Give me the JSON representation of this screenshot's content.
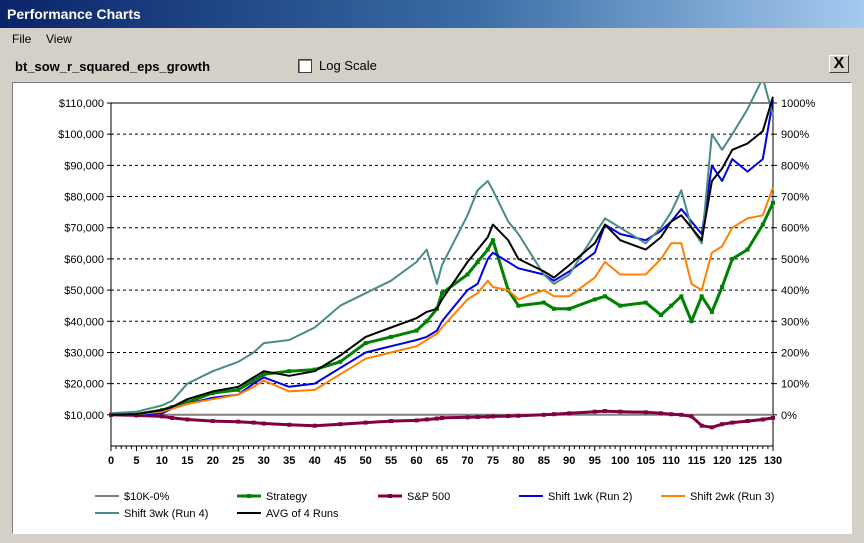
{
  "window": {
    "title": "Performance Charts"
  },
  "menu": {
    "items": [
      "File",
      "View"
    ]
  },
  "toolbar": {
    "chart_name": "bt_sow_r_squared_eps_growth",
    "log_scale_label": "Log Scale",
    "log_scale_checked": false,
    "close_label": "X"
  },
  "chart_data": {
    "type": "line",
    "title": "",
    "xlabel": "",
    "ylabel": "",
    "xlim": [
      0,
      130
    ],
    "ylim": [
      0,
      110000
    ],
    "y2lim": [
      -100,
      1000
    ],
    "y_ticks": [
      "$10,000",
      "$20,000",
      "$30,000",
      "$40,000",
      "$50,000",
      "$60,000",
      "$70,000",
      "$80,000",
      "$90,000",
      "$100,000",
      "$110,000"
    ],
    "y2_ticks": [
      "0%",
      "100%",
      "200%",
      "300%",
      "400%",
      "500%",
      "600%",
      "700%",
      "800%",
      "900%",
      "1000%"
    ],
    "x_ticks": [
      "0",
      "5",
      "10",
      "15",
      "20",
      "25",
      "30",
      "35",
      "40",
      "45",
      "50",
      "55",
      "60",
      "65",
      "70",
      "75",
      "80",
      "85",
      "90",
      "95",
      "100",
      "105",
      "110",
      "115",
      "120",
      "125",
      "130"
    ],
    "grid": "horizontal-dashed",
    "legend_position": "bottom",
    "x": [
      0,
      5,
      10,
      12,
      15,
      20,
      25,
      28,
      30,
      35,
      40,
      45,
      50,
      55,
      60,
      62,
      64,
      65,
      70,
      72,
      74,
      75,
      78,
      80,
      85,
      87,
      90,
      95,
      97,
      100,
      105,
      108,
      110,
      112,
      114,
      116,
      118,
      120,
      122,
      125,
      128,
      130
    ],
    "series": [
      {
        "name": "$10K-0%",
        "color": "#808080",
        "marker": "none",
        "values": [
          10000,
          10000,
          10000,
          10000,
          10000,
          10000,
          10000,
          10000,
          10000,
          10000,
          10000,
          10000,
          10000,
          10000,
          10000,
          10000,
          10000,
          10000,
          10000,
          10000,
          10000,
          10000,
          10000,
          10000,
          10000,
          10000,
          10000,
          10000,
          10000,
          10000,
          10000,
          10000,
          10000,
          10000,
          10000,
          10000,
          10000,
          10000,
          10000,
          10000,
          10000,
          10000
        ]
      },
      {
        "name": "Strategy",
        "color": "#008000",
        "marker": "square",
        "values": [
          10000,
          10200,
          11500,
          12500,
          14000,
          17000,
          18000,
          21000,
          23000,
          24000,
          24500,
          27000,
          33000,
          35000,
          37000,
          40000,
          44000,
          49000,
          55000,
          59000,
          63000,
          66000,
          50000,
          45000,
          46000,
          44000,
          44000,
          47000,
          48000,
          45000,
          46000,
          42000,
          45000,
          48000,
          40000,
          48000,
          43000,
          51000,
          60000,
          63000,
          71000,
          78000
        ]
      },
      {
        "name": "S&P 500",
        "color": "#800040",
        "marker": "square",
        "values": [
          10000,
          9800,
          9500,
          9000,
          8500,
          8000,
          7800,
          7500,
          7200,
          6800,
          6500,
          7000,
          7500,
          8000,
          8200,
          8500,
          8800,
          9000,
          9200,
          9300,
          9400,
          9500,
          9600,
          9700,
          10000,
          10200,
          10500,
          11000,
          11200,
          11000,
          10800,
          10500,
          10200,
          10000,
          9500,
          6500,
          6000,
          7000,
          7500,
          8000,
          8500,
          9000
        ]
      },
      {
        "name": "Shift 1wk (Run 2)",
        "color": "#0000e0",
        "marker": "none",
        "values": [
          10000,
          10000,
          10500,
          12000,
          13500,
          15500,
          16500,
          20000,
          22000,
          19000,
          20000,
          25000,
          30000,
          32000,
          34000,
          35000,
          37000,
          40000,
          50000,
          52000,
          60000,
          62000,
          59000,
          57000,
          55000,
          53000,
          56000,
          62000,
          71000,
          68000,
          66000,
          69000,
          72000,
          76000,
          72000,
          68000,
          90000,
          85000,
          92000,
          88000,
          92000,
          111000
        ]
      },
      {
        "name": "Shift 2wk (Run 3)",
        "color": "#ff8000",
        "marker": "none",
        "values": [
          10000,
          10200,
          11000,
          12000,
          13500,
          15000,
          16500,
          19000,
          21000,
          17500,
          18000,
          23000,
          28000,
          30000,
          32000,
          34000,
          36000,
          38000,
          47000,
          49000,
          53000,
          51000,
          50000,
          47000,
          50000,
          48000,
          48000,
          54000,
          59000,
          55000,
          55000,
          60000,
          65000,
          65000,
          52000,
          50000,
          62000,
          64000,
          70000,
          73000,
          74000,
          83000
        ]
      },
      {
        "name": "Shift 3wk (Run 4)",
        "color": "#4a8a8a",
        "marker": "none",
        "values": [
          10500,
          11000,
          13000,
          14500,
          20000,
          24000,
          27000,
          30000,
          33000,
          34000,
          38000,
          45000,
          49000,
          53000,
          59000,
          63000,
          52000,
          58000,
          74000,
          82000,
          85000,
          82000,
          72000,
          68000,
          55000,
          52000,
          55000,
          68000,
          73000,
          70000,
          65000,
          70000,
          75000,
          82000,
          70000,
          65000,
          100000,
          95000,
          100000,
          108000,
          118000,
          106000
        ]
      },
      {
        "name": "AVG of 4 Runs",
        "color": "#000000",
        "marker": "none",
        "values": [
          10000,
          10200,
          11500,
          12500,
          15000,
          17500,
          19000,
          22000,
          24000,
          22500,
          24000,
          29000,
          35000,
          38000,
          41000,
          43000,
          44000,
          47000,
          59000,
          63000,
          67000,
          71000,
          66000,
          60000,
          56000,
          54000,
          58000,
          65000,
          71000,
          66000,
          63000,
          67000,
          72000,
          74000,
          70000,
          66000,
          85000,
          89000,
          95000,
          97000,
          101000,
          112000
        ]
      }
    ]
  }
}
